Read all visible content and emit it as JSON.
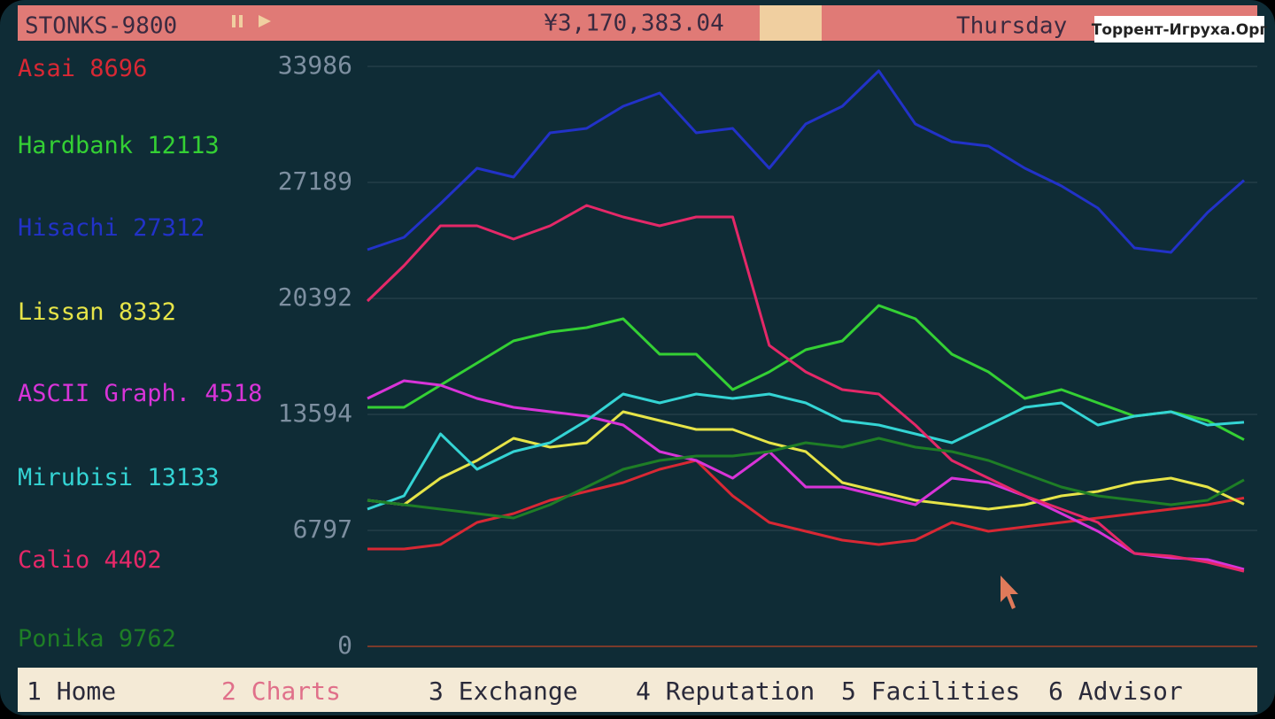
{
  "header": {
    "title": "STONKS-9800",
    "money": "¥3,170,383.04",
    "day": "Thursday",
    "watermark": "Торрент-Игруха.Орг"
  },
  "menu": [
    "1 Home",
    "2 Charts",
    "3 Exchange",
    "4 Reputation",
    "5 Facilities",
    "6 Advisor"
  ],
  "chart_data": {
    "type": "line",
    "ylim": [
      0,
      33986
    ],
    "yticks": [
      0,
      6797,
      13594,
      20392,
      27189,
      33986
    ],
    "grid": true,
    "series": [
      {
        "name": "Asai",
        "color": "#d82834",
        "values": [
          5708,
          5708,
          5967,
          7265,
          7783,
          8562,
          9081,
          9600,
          10378,
          10897,
          8821,
          7265,
          6746,
          6227,
          5967,
          6227,
          7265,
          6746,
          7005,
          7265,
          7524,
          7783,
          8043,
          8302,
          8696
        ]
      },
      {
        "name": "Hardbank",
        "color": "#34d034",
        "values": [
          14010,
          14010,
          15308,
          16605,
          17902,
          18421,
          18680,
          19199,
          17124,
          17124,
          15048,
          16086,
          17383,
          17902,
          19978,
          19199,
          17124,
          16086,
          14529,
          15048,
          14270,
          13491,
          13751,
          13232,
          12113
        ]
      },
      {
        "name": "Hisachi",
        "color": "#2232c8",
        "values": [
          23247,
          23973,
          25945,
          28021,
          27502,
          30096,
          30356,
          31653,
          32431,
          30096,
          30356,
          28021,
          30615,
          31653,
          33729,
          30615,
          29578,
          29318,
          28021,
          26983,
          25686,
          23350,
          23091,
          25426,
          27312
        ]
      },
      {
        "name": "Lissan",
        "color": "#e6e448",
        "values": [
          8562,
          8302,
          9859,
          10897,
          12194,
          11675,
          11935,
          13751,
          13232,
          12713,
          12713,
          11935,
          11416,
          9600,
          9081,
          8562,
          8302,
          8043,
          8302,
          8821,
          9081,
          9600,
          9859,
          9340,
          8332
        ]
      },
      {
        "name": "ASCII Graph.",
        "color": "#d834d8",
        "values": [
          14529,
          15567,
          15308,
          14529,
          14010,
          13751,
          13491,
          12973,
          11416,
          10897,
          9859,
          11416,
          9340,
          9340,
          8821,
          8302,
          9859,
          9600,
          8821,
          7783,
          6746,
          5449,
          5189,
          5085,
          4518
        ]
      },
      {
        "name": "Mirubisi",
        "color": "#34d4d4",
        "values": [
          8043,
          8821,
          12454,
          10378,
          11416,
          11935,
          13232,
          14789,
          14270,
          14789,
          14529,
          14789,
          14270,
          13232,
          12973,
          12454,
          11935,
          12973,
          14010,
          14270,
          12973,
          13491,
          13751,
          12973,
          13133
        ]
      },
      {
        "name": "Calio",
        "color": "#e42868",
        "values": [
          20237,
          22313,
          24648,
          24648,
          23869,
          24648,
          25841,
          25167,
          24648,
          25167,
          25167,
          17643,
          16086,
          15048,
          14789,
          12973,
          10897,
          9859,
          8821,
          8043,
          7265,
          5449,
          5293,
          4930,
          4402
        ]
      },
      {
        "name": "Ponika",
        "color": "#1e7e26",
        "values": [
          8562,
          8302,
          8043,
          7783,
          7524,
          8302,
          9340,
          10378,
          10897,
          11156,
          11156,
          11416,
          11935,
          11675,
          12194,
          11675,
          11416,
          10897,
          10119,
          9340,
          8821,
          8562,
          8302,
          8562,
          9762
        ]
      }
    ]
  }
}
